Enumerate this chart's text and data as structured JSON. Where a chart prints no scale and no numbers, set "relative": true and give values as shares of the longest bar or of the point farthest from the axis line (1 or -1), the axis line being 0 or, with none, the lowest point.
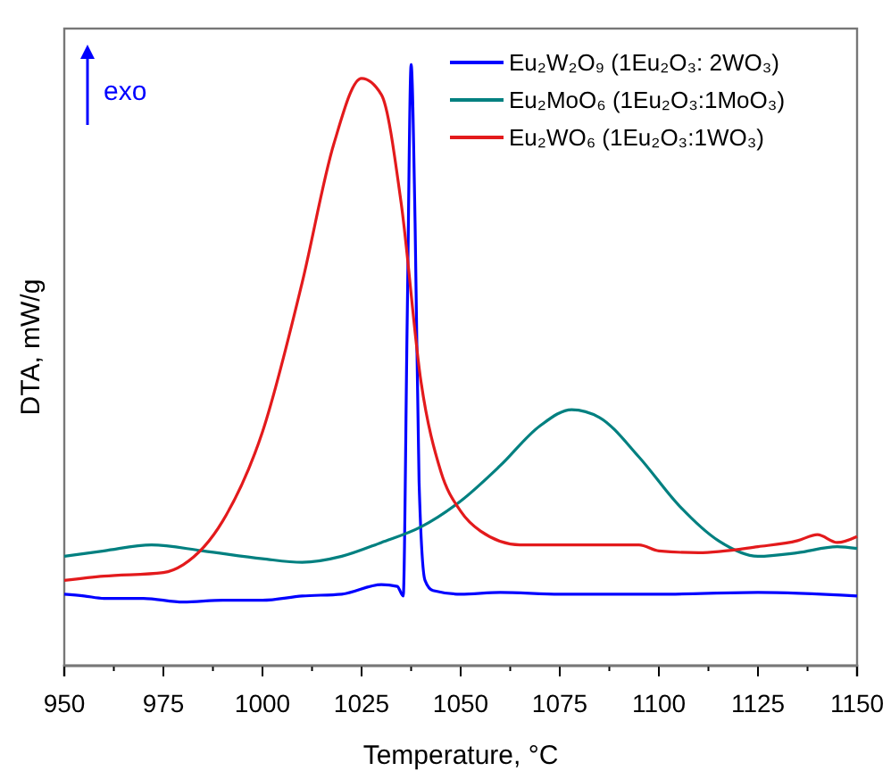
{
  "chart_data": {
    "type": "line",
    "relative": true,
    "xlabel": "Temperature, °C",
    "ylabel": "DTA, mW/g",
    "annotations": [
      "exo"
    ],
    "legend": "top right",
    "grid": false,
    "line_style": "solid",
    "xlim": [
      950,
      1150
    ],
    "xticks": [
      950,
      {
        "value": 962.5,
        "label": null
      },
      975,
      {
        "value": 987.5,
        "label": null
      },
      1000,
      {
        "value": 1012.5,
        "label": null
      },
      1025,
      {
        "value": 1037.5,
        "label": null
      },
      1050,
      {
        "value": 1062.5,
        "label": null
      },
      1075,
      {
        "value": 1087.5,
        "label": null
      },
      1100,
      {
        "value": 1112.5,
        "label": null
      },
      1125,
      {
        "value": 1137.5,
        "label": null
      },
      1150
    ],
    "series": [
      {
        "name": "Eu₂W₂O₉  (1Eu₂O₃: 2WO₃)",
        "color": "#0000ff",
        "x": [
          950,
          955,
          960,
          970,
          980,
          990,
          1000,
          1010,
          1020,
          1030,
          1034,
          1035.5,
          1036.5,
          1037.5,
          1038.5,
          1039.5,
          1041,
          1043,
          1050,
          1060,
          1075,
          1100,
          1125,
          1150
        ],
        "values": [
          0.119,
          0.116,
          0.112,
          0.112,
          0.106,
          0.109,
          0.109,
          0.116,
          0.119,
          0.135,
          0.132,
          0.116,
          0.571,
          1.0,
          0.736,
          0.307,
          0.142,
          0.125,
          0.119,
          0.122,
          0.119,
          0.119,
          0.122,
          0.116
        ]
      },
      {
        "name": "Eu₂MoO₆ (1Eu₂O₃:1MoO₃)",
        "color": "#008080",
        "x": [
          950,
          960,
          972,
          985,
          1000,
          1010,
          1020,
          1030,
          1040,
          1050,
          1060,
          1070,
          1078,
          1085,
          1095,
          1105,
          1115,
          1125,
          1135,
          1145,
          1150
        ],
        "values": [
          0.182,
          0.191,
          0.201,
          0.191,
          0.178,
          0.172,
          0.182,
          0.205,
          0.231,
          0.274,
          0.333,
          0.399,
          0.426,
          0.413,
          0.347,
          0.267,
          0.208,
          0.182,
          0.188,
          0.198,
          0.195
        ]
      },
      {
        "name": "Eu₂WO₆   (1Eu₂O₃:1WO₃)",
        "color": "#e31a1c",
        "x": [
          950,
          960,
          975,
          980,
          990,
          1000,
          1010,
          1018,
          1025,
          1030,
          1035,
          1040,
          1045,
          1050,
          1055,
          1065,
          1080,
          1095,
          1100,
          1110,
          1125,
          1135,
          1140,
          1145,
          1150
        ],
        "values": [
          0.142,
          0.149,
          0.155,
          0.168,
          0.241,
          0.389,
          0.637,
          0.868,
          0.977,
          0.95,
          0.769,
          0.472,
          0.323,
          0.257,
          0.224,
          0.201,
          0.201,
          0.201,
          0.191,
          0.188,
          0.198,
          0.208,
          0.218,
          0.205,
          0.215
        ]
      }
    ]
  }
}
